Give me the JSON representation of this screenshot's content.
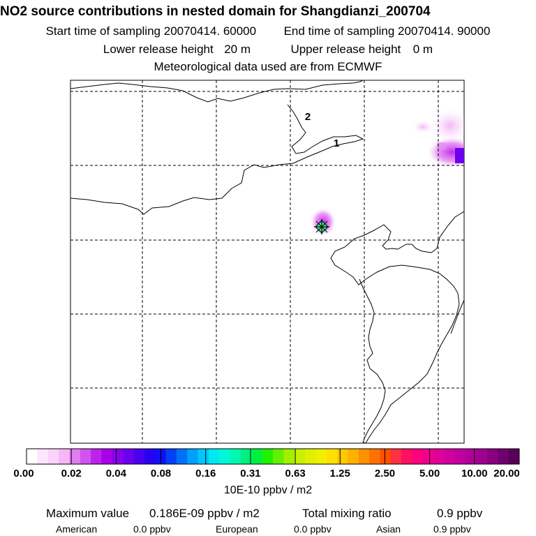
{
  "title": "NO2 source contributions in nested domain for Shangdianzi_200704",
  "sampling": {
    "start_label": "Start time of sampling",
    "start_value": "20070414. 60000",
    "end_label": "End time of sampling",
    "end_value": "20070414. 90000"
  },
  "release": {
    "lower_label": "Lower release height",
    "lower_value": "20 m",
    "upper_label": "Upper release height",
    "upper_value": "0 m"
  },
  "met_line": "Meteorological data used are from ECMWF",
  "map": {
    "contour_labels": [
      "2",
      "1"
    ]
  },
  "colorbar": {
    "tick_labels": [
      "0.00",
      "0.02",
      "0.04",
      "0.08",
      "0.16",
      "0.31",
      "0.63",
      "1.25",
      "2.50",
      "5.00",
      "10.00",
      "20.00"
    ],
    "colors": [
      "#ffffff",
      "#fde6fd",
      "#fad2fa",
      "#f5b8f5",
      "#e27ff0",
      "#d054ee",
      "#bb22ec",
      "#a800ea",
      "#8a00ec",
      "#6a00ee",
      "#4a00f0",
      "#2a00f2",
      "#1010f6",
      "#0040f8",
      "#0070fa",
      "#00a0fc",
      "#00c8fc",
      "#00e8f0",
      "#00f8d8",
      "#00f8b0",
      "#00f080",
      "#00f040",
      "#20f000",
      "#60f000",
      "#a0f000",
      "#c8f000",
      "#e0f000",
      "#f0f000",
      "#ffe000",
      "#ffc800",
      "#ffb000",
      "#ff9000",
      "#ff7000",
      "#ff5000",
      "#ff3040",
      "#ff1060",
      "#ff0080",
      "#f00090",
      "#e00098",
      "#d000a0",
      "#c000a0",
      "#b00098",
      "#a00090",
      "#880080",
      "#700070",
      "#580058"
    ],
    "unit": "10E-10 ppbv / m2"
  },
  "summary": {
    "max_label": "Maximum value",
    "max_value": "0.186E-09 ppbv / m2",
    "total_label": "Total mixing ratio",
    "total_value": "0.9 ppbv"
  },
  "regions": [
    {
      "name": "American",
      "value": "0.0 ppbv"
    },
    {
      "name": "European",
      "value": "0.0 ppbv"
    },
    {
      "name": "Asian",
      "value": "0.9 ppbv"
    }
  ]
}
